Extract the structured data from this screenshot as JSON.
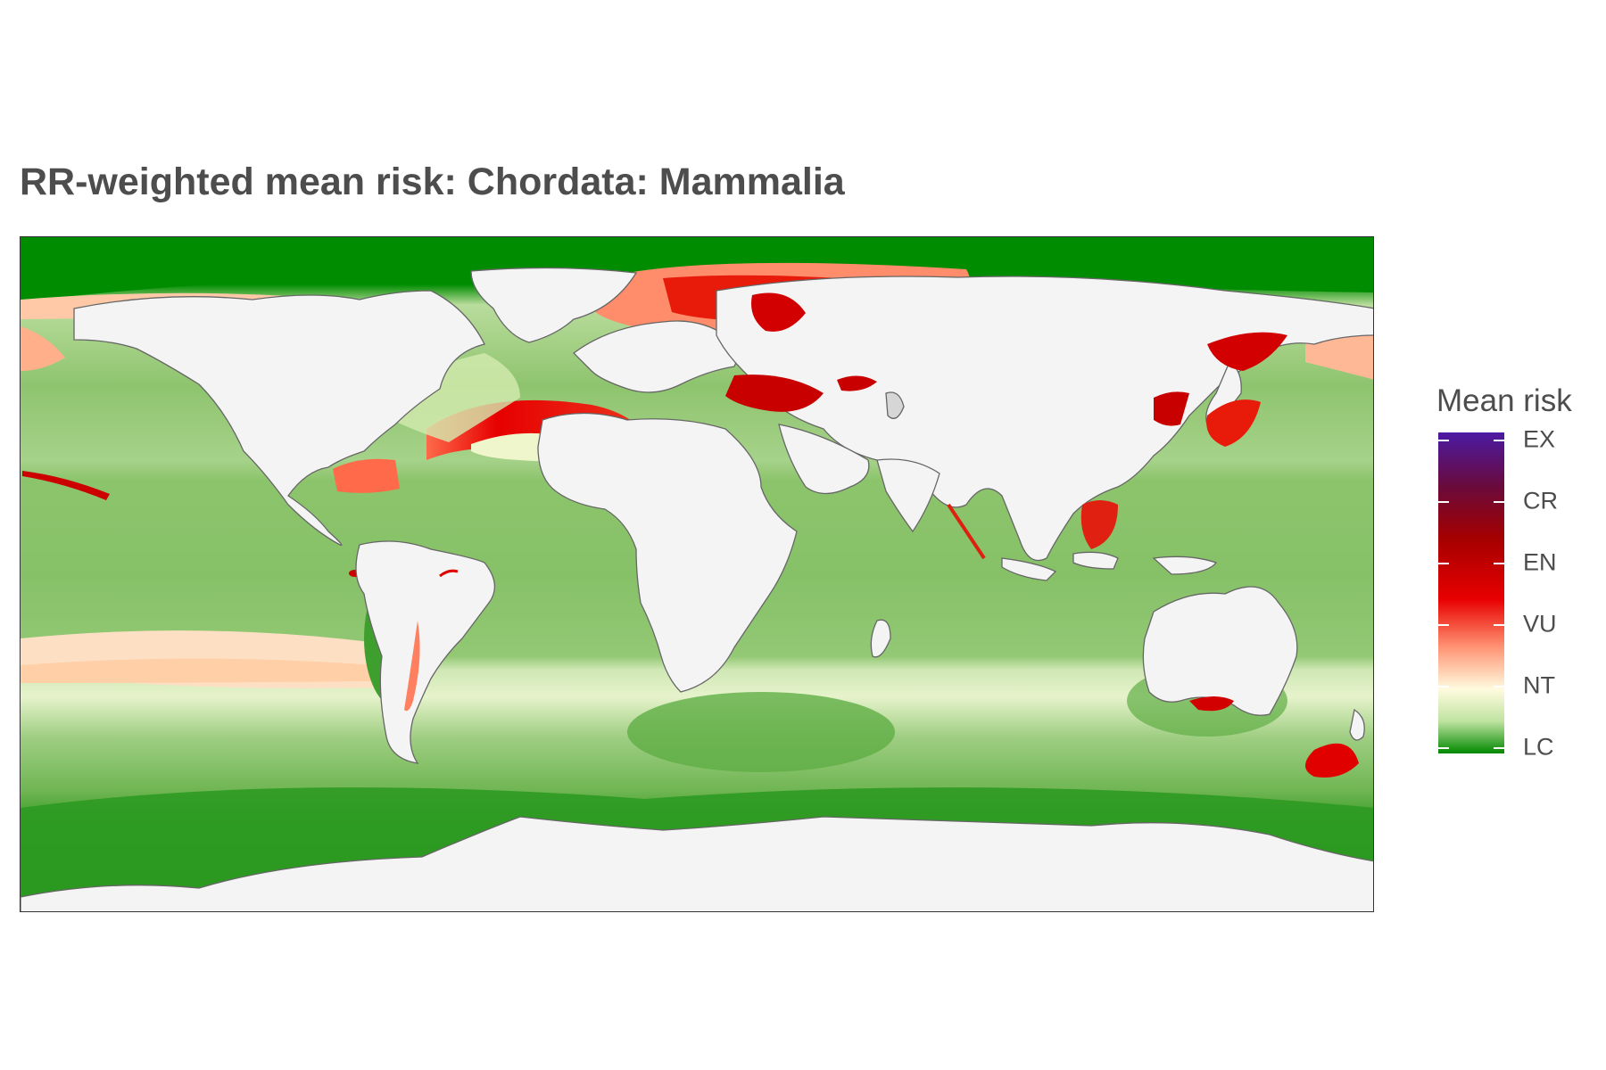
{
  "title": "RR-weighted mean risk: Chordata: Mammalia",
  "legend": {
    "title": "Mean risk",
    "categories": [
      "EX",
      "CR",
      "EN",
      "VU",
      "NT",
      "LC"
    ],
    "gradient": [
      {
        "stop": 0.0,
        "color": "#4b1aa3"
      },
      {
        "stop": 0.17,
        "color": "#6a0a3a"
      },
      {
        "stop": 0.33,
        "color": "#a50000"
      },
      {
        "stop": 0.52,
        "color": "#e80000"
      },
      {
        "stop": 0.67,
        "color": "#ff9575"
      },
      {
        "stop": 0.8,
        "color": "#fffbdf"
      },
      {
        "stop": 0.9,
        "color": "#bfe3a0"
      },
      {
        "stop": 1.0,
        "color": "#008800"
      }
    ]
  },
  "colors": {
    "land": "#f4f4f4",
    "coast": "#666666",
    "least_concern": "#008c00",
    "low_risk": "#8cc46b",
    "near_threatened": "#e8f4cc",
    "vulnerable": "#ff7a5a",
    "endangered": "#dd0000"
  }
}
